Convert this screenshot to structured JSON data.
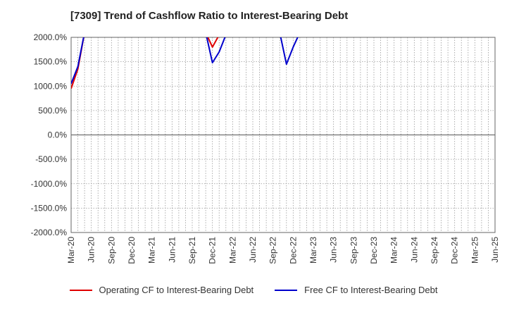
{
  "chart_data": {
    "type": "line",
    "title": "[7309]  Trend of Cashflow Ratio to Interest-Bearing Debt",
    "xlabel": "",
    "ylabel": "",
    "ylim": [
      -2000,
      2000
    ],
    "yticks": [
      "2000.0%",
      "1500.0%",
      "1000.0%",
      "500.0%",
      "0.0%",
      "-500.0%",
      "-1000.0%",
      "-1500.0%",
      "-2000.0%"
    ],
    "ytick_values": [
      2000,
      1500,
      1000,
      500,
      0,
      -500,
      -1000,
      -1500,
      -2000
    ],
    "xticks": [
      "Mar-20",
      "Jun-20",
      "Sep-20",
      "Dec-20",
      "Mar-21",
      "Jun-21",
      "Sep-21",
      "Dec-21",
      "Mar-22",
      "Jun-22",
      "Sep-22",
      "Dec-22",
      "Mar-23",
      "Jun-23",
      "Sep-23",
      "Dec-23",
      "Mar-24",
      "Jun-24",
      "Sep-24",
      "Dec-24",
      "Mar-25",
      "Jun-25"
    ],
    "x_months": [
      "2020-03",
      "2020-04",
      "2020-05",
      "2020-06",
      "2020-07",
      "2020-08",
      "2020-09",
      "2020-10",
      "2020-11",
      "2020-12",
      "2021-01",
      "2021-02",
      "2021-03",
      "2021-04",
      "2021-05",
      "2021-06",
      "2021-07",
      "2021-08",
      "2021-09",
      "2021-10",
      "2021-11",
      "2021-12",
      "2022-01",
      "2022-02",
      "2022-03",
      "2022-04",
      "2022-05",
      "2022-06",
      "2022-07",
      "2022-08",
      "2022-09",
      "2022-10",
      "2022-11",
      "2022-12",
      "2023-01",
      "2023-02",
      "2023-03",
      "2023-04",
      "2023-05",
      "2023-06",
      "2023-07",
      "2023-08",
      "2023-09",
      "2023-10",
      "2023-11",
      "2023-12",
      "2024-01",
      "2024-02",
      "2024-03",
      "2024-04",
      "2024-05",
      "2024-06",
      "2024-07",
      "2024-08",
      "2024-09",
      "2024-10",
      "2024-11",
      "2024-12",
      "2025-01",
      "2025-02",
      "2025-03",
      "2025-04",
      "2025-05",
      "2025-06"
    ],
    "series": [
      {
        "name": "Operating CF to Interest-Bearing Debt",
        "color": "#e00000",
        "x": [
          "2020-03",
          "2020-04",
          "2020-05",
          "2021-11",
          "2021-12",
          "2022-01",
          "2022-02"
        ],
        "values": [
          950,
          1350,
          2100,
          2100,
          1800,
          2050,
          2100
        ]
      },
      {
        "name": "Free CF to Interest-Bearing Debt",
        "color": "#0000cc",
        "x": [
          "2020-03",
          "2020-04",
          "2020-05",
          "2021-11",
          "2021-12",
          "2022-01",
          "2022-02",
          "2022-10",
          "2022-11",
          "2022-12",
          "2023-01"
        ],
        "values": [
          1050,
          1400,
          2100,
          2100,
          1480,
          1700,
          2050,
          2100,
          1450,
          1800,
          2100
        ]
      }
    ],
    "grid": true,
    "legend_position": "bottom"
  }
}
